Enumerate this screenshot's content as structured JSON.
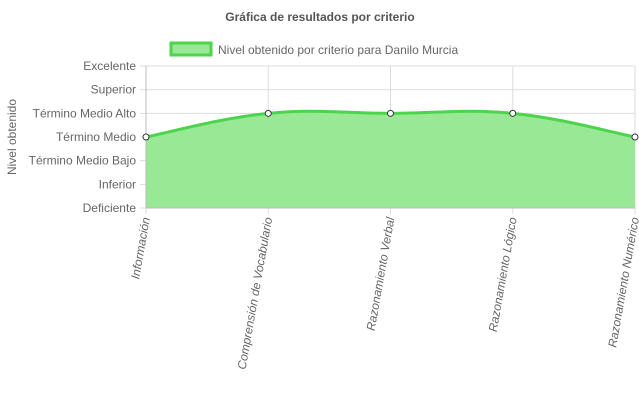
{
  "chart_data": {
    "type": "area",
    "title": "Gráfica de resultados por criterio",
    "ylabel": "Nivel obtenido",
    "xlabel": "",
    "categories": [
      "Información",
      "Comprensión de Vocabulario",
      "Razonamiento Verbal",
      "Razonamiento Lógico",
      "Razonamiento Numérico"
    ],
    "y_levels": [
      "Deficiente",
      "Inferior",
      "Término Medio Bajo",
      "Término Medio",
      "Término Medio Alto",
      "Superior",
      "Excelente"
    ],
    "ylim": [
      0,
      6
    ],
    "series": [
      {
        "name": "Nivel obtenido por criterio para Danilo Murcia",
        "values": [
          3,
          4,
          4,
          4,
          3
        ],
        "value_labels": [
          "Término Medio",
          "Término Medio Alto",
          "Término Medio Alto",
          "Término Medio Alto",
          "Término Medio"
        ]
      }
    ],
    "grid": true,
    "smooth": true,
    "legend_position": "top",
    "colors": {
      "line": "#4cd44c",
      "fill": "#98e896",
      "point_fill": "#ffffff",
      "point_stroke": "#333333",
      "grid": "#dddddd",
      "text": "#666666",
      "title": "#555555"
    }
  }
}
